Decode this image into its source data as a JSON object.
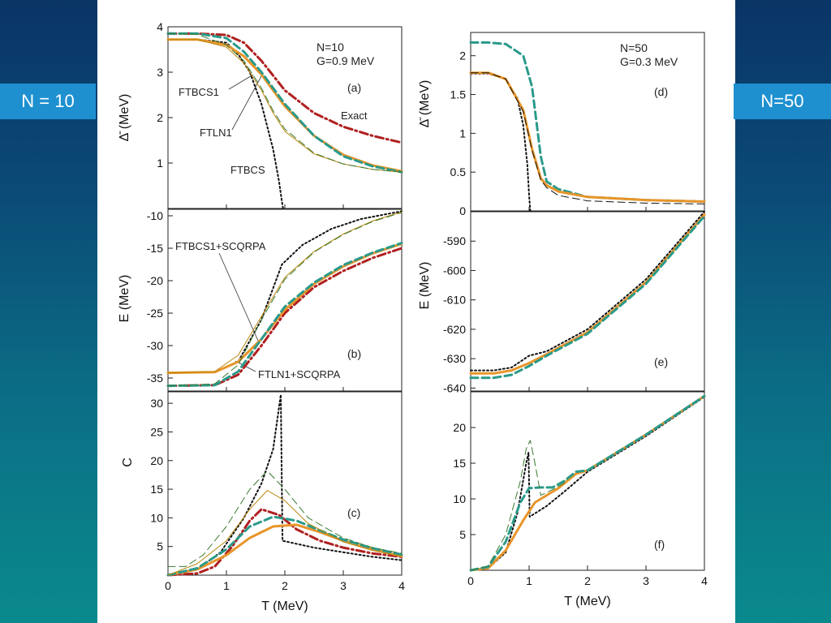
{
  "side_labels": {
    "left": "N = 10",
    "right": "N=50"
  },
  "colors": {
    "exact": "#b02020",
    "ftbcs": "#111111",
    "ftbcs1": "#e8952a",
    "ftln1": "#2a9a8a",
    "thin_ftbcs1": "#b8860b",
    "thin_ftln1": "#3a7a30"
  },
  "chart_data": [
    {
      "id": "a",
      "type": "line",
      "panel_label": "(a)",
      "info": [
        "N=10",
        "G=0.9 MeV"
      ],
      "ylabel": "Δ̄  (MeV)",
      "xlim": [
        0,
        4
      ],
      "ylim": [
        0,
        4
      ],
      "yticks": [
        1,
        2,
        3,
        4
      ],
      "annotations": [
        "FTBCS1",
        "FTLN1",
        "FTBCS",
        "Exact"
      ],
      "series": [
        {
          "name": "Exact",
          "style": "dashdot",
          "color": "exact",
          "width": 3,
          "x": [
            0,
            0.5,
            1,
            1.3,
            1.6,
            2,
            2.5,
            3,
            3.5,
            4
          ],
          "y": [
            3.85,
            3.85,
            3.82,
            3.65,
            3.25,
            2.6,
            2.1,
            1.8,
            1.6,
            1.45
          ]
        },
        {
          "name": "FTBCS",
          "style": "dotted",
          "color": "ftbcs",
          "width": 2,
          "x": [
            0,
            0.5,
            1,
            1.2,
            1.4,
            1.6,
            1.8,
            1.9,
            1.95,
            1.97
          ],
          "y": [
            3.72,
            3.72,
            3.65,
            3.4,
            3.0,
            2.3,
            1.3,
            0.6,
            0.15,
            0
          ]
        },
        {
          "name": "FTBCS1",
          "style": "solid",
          "color": "ftbcs1",
          "width": 3,
          "x": [
            0,
            0.5,
            1,
            1.3,
            1.6,
            2,
            2.5,
            3,
            3.5,
            4
          ],
          "y": [
            3.72,
            3.72,
            3.6,
            3.35,
            2.95,
            2.25,
            1.6,
            1.18,
            0.95,
            0.82
          ]
        },
        {
          "name": "FTLN1",
          "style": "dashed",
          "color": "ftln1",
          "width": 3,
          "x": [
            0,
            0.5,
            1,
            1.3,
            1.6,
            2,
            2.5,
            3,
            3.5,
            4
          ],
          "y": [
            3.85,
            3.85,
            3.75,
            3.45,
            3.0,
            2.3,
            1.6,
            1.15,
            0.93,
            0.8
          ]
        },
        {
          "name": "FTBCS1 thin",
          "style": "solid",
          "color": "thin_ftbcs1",
          "width": 1,
          "x": [
            0,
            0.5,
            1,
            1.3,
            1.6,
            1.8,
            2,
            2.5,
            3,
            3.5,
            4
          ],
          "y": [
            3.72,
            3.72,
            3.55,
            3.2,
            2.6,
            2.1,
            1.7,
            1.2,
            0.98,
            0.86,
            0.8
          ]
        },
        {
          "name": "FTLN1 thin",
          "style": "dashed",
          "color": "thin_ftln1",
          "width": 1,
          "x": [
            0,
            0.5,
            1,
            1.3,
            1.6,
            1.8,
            2,
            2.5,
            3,
            3.5,
            4
          ],
          "y": [
            3.85,
            3.83,
            3.6,
            3.25,
            2.65,
            2.15,
            1.75,
            1.22,
            0.98,
            0.86,
            0.8
          ]
        }
      ]
    },
    {
      "id": "b",
      "type": "line",
      "panel_label": "(b)",
      "ylabel": "E  (MeV)",
      "xlim": [
        0,
        4
      ],
      "ylim": [
        -37,
        -9
      ],
      "yticks": [
        -35,
        -30,
        -25,
        -20,
        -15,
        -10
      ],
      "annotations": [
        "FTBCS1+SCQRPA",
        "FTLN1+SCQRPA"
      ],
      "series": [
        {
          "name": "Exact",
          "style": "dashdot",
          "color": "exact",
          "width": 3,
          "x": [
            0,
            0.8,
            1.2,
            1.6,
            2,
            2.5,
            3,
            3.5,
            4
          ],
          "y": [
            -36.2,
            -36.1,
            -34.5,
            -30,
            -25,
            -21,
            -18.5,
            -16.5,
            -15
          ]
        },
        {
          "name": "FTBCS",
          "style": "dotted",
          "color": "ftbcs",
          "width": 2,
          "x": [
            0,
            0.8,
            1.2,
            1.6,
            1.95,
            2.3,
            2.8,
            3.3,
            4
          ],
          "y": [
            -34.2,
            -34.1,
            -32.5,
            -26,
            -17.5,
            -14.5,
            -12,
            -10.5,
            -9.3
          ]
        },
        {
          "name": "FTBCS1",
          "style": "solid",
          "color": "ftbcs1",
          "width": 3,
          "x": [
            0,
            0.8,
            1.2,
            1.6,
            2,
            2.5,
            3,
            3.5,
            4
          ],
          "y": [
            -34.2,
            -34.1,
            -32.5,
            -29,
            -24.5,
            -20.5,
            -17.8,
            -15.8,
            -14.3
          ]
        },
        {
          "name": "FTLN1",
          "style": "dashed",
          "color": "ftln1",
          "width": 3,
          "x": [
            0,
            0.8,
            1.2,
            1.6,
            2,
            2.5,
            3,
            3.5,
            4
          ],
          "y": [
            -36.2,
            -36.1,
            -34,
            -29,
            -24,
            -20.3,
            -17.6,
            -15.7,
            -14.2
          ]
        },
        {
          "name": "FTBCS1 thin",
          "style": "solid",
          "color": "thin_ftbcs1",
          "width": 1,
          "x": [
            0,
            0.8,
            1.2,
            1.6,
            2,
            2.5,
            3,
            3.5,
            4
          ],
          "y": [
            -34.2,
            -34,
            -31.5,
            -25.5,
            -19.5,
            -15.5,
            -12.8,
            -10.8,
            -9.4
          ]
        },
        {
          "name": "FTLN1 thin",
          "style": "dashed",
          "color": "thin_ftln1",
          "width": 1,
          "x": [
            0,
            0.8,
            1.2,
            1.6,
            2,
            2.5,
            3,
            3.5,
            4
          ],
          "y": [
            -36.2,
            -35.9,
            -33,
            -26,
            -19.8,
            -15.6,
            -12.9,
            -10.9,
            -9.5
          ]
        }
      ]
    },
    {
      "id": "c",
      "type": "line",
      "panel_label": "(c)",
      "ylabel": "C",
      "xlabel": "T  (MeV)",
      "xlim": [
        0,
        4
      ],
      "ylim": [
        0,
        32
      ],
      "yticks": [
        5,
        10,
        15,
        20,
        25,
        30
      ],
      "xticks": [
        0,
        1,
        2,
        3,
        4
      ],
      "series": [
        {
          "name": "Exact",
          "style": "dashdot",
          "color": "exact",
          "width": 3,
          "x": [
            0,
            0.5,
            0.8,
            1.1,
            1.4,
            1.6,
            1.9,
            2.2,
            2.6,
            3,
            3.5,
            4
          ],
          "y": [
            0,
            0.3,
            1.5,
            5,
            9.5,
            11.5,
            10.5,
            8,
            6,
            4.8,
            3.8,
            3.2
          ]
        },
        {
          "name": "FTBCS",
          "style": "dotted",
          "color": "ftbcs",
          "width": 2,
          "x": [
            0,
            0.5,
            0.9,
            1.3,
            1.6,
            1.8,
            1.93,
            1.96,
            2.5,
            3,
            3.5,
            4
          ],
          "y": [
            0,
            1,
            4,
            10,
            16,
            22,
            31.5,
            6,
            4.8,
            4,
            3.2,
            2.6
          ]
        },
        {
          "name": "FTBCS1",
          "style": "solid",
          "color": "ftbcs1",
          "width": 3,
          "x": [
            0,
            0.5,
            1,
            1.4,
            1.8,
            2.2,
            2.6,
            3,
            3.5,
            4
          ],
          "y": [
            0,
            1,
            3.5,
            6.5,
            8.5,
            8.8,
            7.5,
            6,
            4.5,
            3.3
          ]
        },
        {
          "name": "FTLN1",
          "style": "dashed",
          "color": "ftln1",
          "width": 3,
          "x": [
            0,
            0.5,
            1,
            1.4,
            1.8,
            2.2,
            2.6,
            3,
            3.5,
            4
          ],
          "y": [
            0,
            1.2,
            4.5,
            8.5,
            10.2,
            9.5,
            7.8,
            6.2,
            4.7,
            3.6
          ]
        },
        {
          "name": "FTBCS1 thin",
          "style": "solid",
          "color": "thin_ftbcs1",
          "width": 1,
          "x": [
            0,
            0.5,
            1,
            1.4,
            1.7,
            2,
            2.4,
            3,
            3.5,
            4
          ],
          "y": [
            0,
            2,
            6,
            11.5,
            14.8,
            13,
            9,
            5.8,
            4.3,
            3.3
          ]
        },
        {
          "name": "FTLN1 thin",
          "style": "dashed",
          "color": "thin_ftln1",
          "width": 1,
          "x": [
            0,
            0.3,
            0.6,
            1,
            1.4,
            1.7,
            2,
            2.4,
            3,
            3.5,
            4
          ],
          "y": [
            1.5,
            1.5,
            3.5,
            8.5,
            15,
            18.2,
            15,
            10,
            6.5,
            4.8,
            3.8
          ]
        }
      ]
    },
    {
      "id": "d",
      "type": "line",
      "panel_label": "(d)",
      "info": [
        "N=50",
        "G=0.3 MeV"
      ],
      "ylabel": "Δ̄  (MeV)",
      "xlim": [
        0,
        4
      ],
      "ylim": [
        0,
        2.3
      ],
      "yticks": [
        0,
        0.5,
        1.0,
        1.5,
        2.0
      ],
      "series": [
        {
          "name": "FTBCS",
          "style": "dotted",
          "color": "ftbcs",
          "width": 2,
          "x": [
            0,
            0.3,
            0.6,
            0.8,
            0.9,
            0.97,
            1.0,
            1.02
          ],
          "y": [
            1.77,
            1.77,
            1.7,
            1.45,
            1.1,
            0.6,
            0.2,
            0
          ]
        },
        {
          "name": "FTLN1",
          "style": "dashed",
          "color": "ftln1",
          "width": 3,
          "x": [
            0,
            0.3,
            0.6,
            0.9,
            1.05,
            1.2,
            1.3,
            1.5,
            2,
            3,
            4
          ],
          "y": [
            2.17,
            2.17,
            2.15,
            2.0,
            1.6,
            0.7,
            0.38,
            0.28,
            0.18,
            0.14,
            0.12
          ]
        },
        {
          "name": "FTBCS1",
          "style": "solid",
          "color": "ftbcs1",
          "width": 3,
          "x": [
            0,
            0.3,
            0.6,
            0.9,
            1.05,
            1.2,
            1.3,
            1.5,
            2,
            3,
            4
          ],
          "y": [
            1.78,
            1.78,
            1.7,
            1.3,
            0.8,
            0.42,
            0.33,
            0.25,
            0.18,
            0.14,
            0.12
          ]
        },
        {
          "name": "FTLN1 thin",
          "style": "dashed",
          "color": "ftbcs",
          "width": 1,
          "x": [
            0,
            0.3,
            0.6,
            0.9,
            1.05,
            1.2,
            1.3,
            1.5,
            2,
            3,
            4
          ],
          "y": [
            1.78,
            1.78,
            1.7,
            1.28,
            0.78,
            0.4,
            0.3,
            0.2,
            0.13,
            0.1,
            0.09
          ]
        }
      ]
    },
    {
      "id": "e",
      "type": "line",
      "panel_label": "(e)",
      "ylabel": "E  (MeV)",
      "xlim": [
        0,
        4
      ],
      "ylim": [
        -641,
        -580
      ],
      "yticks": [
        -640,
        -630,
        -620,
        -610,
        -600,
        -590
      ],
      "series": [
        {
          "name": "FTBCS",
          "style": "dotted",
          "color": "ftbcs",
          "width": 2,
          "x": [
            0,
            0.4,
            0.7,
            1,
            1.3,
            2,
            3,
            4
          ],
          "y": [
            -634,
            -634,
            -633,
            -629,
            -627.5,
            -620,
            -603,
            -580
          ]
        },
        {
          "name": "FTBCS1",
          "style": "solid",
          "color": "ftbcs1",
          "width": 3,
          "x": [
            0,
            0.4,
            0.7,
            1,
            1.3,
            2,
            3,
            4
          ],
          "y": [
            -635,
            -635,
            -634,
            -631.5,
            -628.5,
            -621,
            -604,
            -581
          ]
        },
        {
          "name": "FTLN1",
          "style": "dashed",
          "color": "ftln1",
          "width": 3,
          "x": [
            0,
            0.4,
            0.7,
            1,
            1.3,
            2,
            3,
            4
          ],
          "y": [
            -636.5,
            -636.5,
            -635.5,
            -632.5,
            -629,
            -621.5,
            -604.5,
            -581.5
          ]
        }
      ]
    },
    {
      "id": "f",
      "type": "line",
      "panel_label": "(f)",
      "xlabel": "T  (MeV)",
      "xlim": [
        0,
        4
      ],
      "ylim": [
        0,
        25
      ],
      "yticks": [
        5,
        10,
        15,
        20
      ],
      "xticks": [
        0,
        1,
        2,
        3,
        4
      ],
      "series": [
        {
          "name": "FTBCS",
          "style": "dotted",
          "color": "ftbcs",
          "width": 2,
          "x": [
            0,
            0.3,
            0.6,
            0.8,
            0.95,
            0.99,
            1.01,
            1.3,
            1.6,
            2,
            3,
            4
          ],
          "y": [
            0,
            0.3,
            2.5,
            8,
            15,
            16.5,
            7.5,
            9,
            11,
            13.8,
            18.8,
            24.3
          ]
        },
        {
          "name": "FTBCS1",
          "style": "solid",
          "color": "ftbcs1",
          "width": 3,
          "x": [
            0,
            0.3,
            0.6,
            0.9,
            1.1,
            1.3,
            1.5,
            1.8,
            2,
            3,
            4
          ],
          "y": [
            0,
            0.3,
            2.8,
            7,
            9.5,
            10.5,
            11.5,
            13.5,
            14,
            19,
            24.4
          ]
        },
        {
          "name": "FTLN1",
          "style": "dashed",
          "color": "ftln1",
          "width": 3,
          "x": [
            0,
            0.3,
            0.6,
            0.85,
            1,
            1.2,
            1.4,
            1.6,
            1.8,
            2,
            3,
            4
          ],
          "y": [
            0,
            0.5,
            4,
            9.5,
            11.5,
            11.6,
            11.6,
            12.5,
            13.8,
            14,
            19,
            24.4
          ]
        },
        {
          "name": "FTLN1 thin",
          "style": "dashed",
          "color": "thin_ftln1",
          "width": 1,
          "x": [
            0,
            0.3,
            0.6,
            0.85,
            0.95,
            1.02,
            1.1,
            1.2,
            1.4,
            1.6
          ],
          "y": [
            0,
            0.6,
            5,
            12.5,
            17,
            18.2,
            15,
            10.5,
            11.3,
            12.2
          ]
        }
      ]
    }
  ]
}
